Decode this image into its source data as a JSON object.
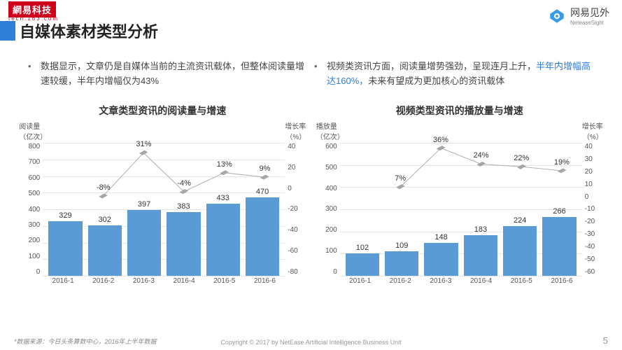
{
  "branding": {
    "top_badge": "網易科技",
    "top_badge_sub": "tech.163.com",
    "logo_cn": "网易见外",
    "logo_en": "NeteaseSight",
    "logo_color": "#2f8cde"
  },
  "page": {
    "title": "自媒体素材类型分析",
    "number": "5",
    "source_note": "*数据来源：今日头条算数中心，2016年上半年数据",
    "copyright": "Copyright © 2017 by NetEase Artificial Intelligence Business Unit"
  },
  "bullets": {
    "left": "数据显示，文章仍是自媒体当前的主流资讯载体，但整体阅读量增速较缓，半年内增幅仅为43%",
    "right_pre": "视频类资讯方面，阅读量增势强劲，呈现连月上升，",
    "right_hl": "半年内增幅高达160%，",
    "right_post": "未来有望成为更加核心的资讯载体"
  },
  "chart_left": {
    "title": "文章类型资讯的阅读量与增速",
    "y1_label": "阅读量\n（亿次）",
    "y2_label": "增长率\n（%）",
    "y1_max": 800,
    "y1_step": 100,
    "y2_max": 40,
    "y2_min": -80,
    "y2_step": 20,
    "categories": [
      "2016-1",
      "2016-2",
      "2016-3",
      "2016-4",
      "2016-5",
      "2016-6"
    ],
    "bar_values": [
      329,
      302,
      397,
      383,
      433,
      470
    ],
    "bar_color": "#5b9bd5",
    "growth_values_pct": [
      -8,
      31,
      -4,
      13,
      9
    ],
    "growth_labels": [
      "-8%",
      "31%",
      "-4%",
      "13%",
      "9%"
    ],
    "line_color": "#a6a6a6",
    "marker_color": "#a6a6a6",
    "grid_color": "#e5e5e5"
  },
  "chart_right": {
    "title": "视频类型资讯的播放量与增速",
    "y1_label": "播放量\n（亿次）",
    "y2_label": "增长率\n（%）",
    "y1_max": 600,
    "y1_step": 100,
    "y2_max": 40,
    "y2_min": -60,
    "y2_step": 10,
    "categories": [
      "2016-1",
      "2016-2",
      "2016-3",
      "2016-4",
      "2016-5",
      "2016-6"
    ],
    "bar_values": [
      102,
      109,
      148,
      183,
      224,
      266
    ],
    "bar_color": "#5b9bd5",
    "growth_values_pct": [
      7,
      36,
      24,
      22,
      19
    ],
    "growth_labels": [
      "7%",
      "36%",
      "24%",
      "22%",
      "19%"
    ],
    "line_color": "#a6a6a6",
    "marker_color": "#a6a6a6",
    "grid_color": "#e5e5e5"
  }
}
